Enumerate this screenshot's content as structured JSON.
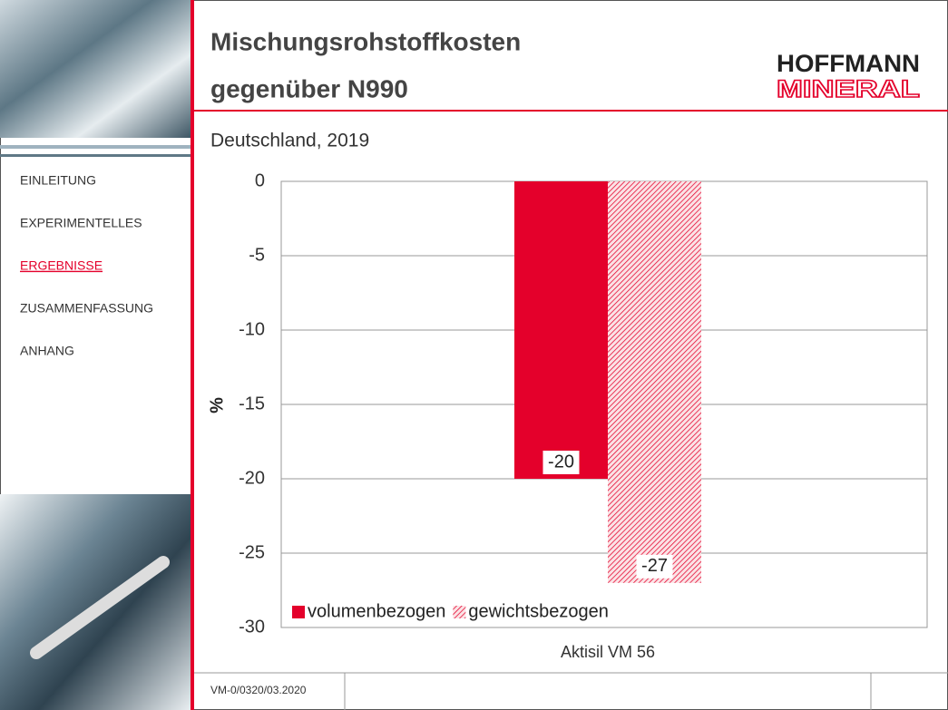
{
  "header": {
    "title": [
      "Mischungsrohstoffkosten",
      "gegenüber N990"
    ],
    "subtitle": "Deutschland, 2019",
    "logo": [
      "HOFFMANN",
      "MINERAL"
    ]
  },
  "nav": {
    "items": [
      "EINLEITUNG",
      "EXPERIMENTELLES",
      "ERGEBNISSE",
      "ZUSAMMENFASSUNG",
      "ANHANG"
    ],
    "active": 2
  },
  "footer": {
    "code": "VM-0/0320/03.2020"
  },
  "chart_data": {
    "type": "bar",
    "y_label": "%",
    "categories": [
      "Aktisil VM 56"
    ],
    "series": [
      {
        "name": "volumenbezogen",
        "color": "#e4002b",
        "values": [
          -20
        ]
      },
      {
        "name": "gewichtsbezogen",
        "color": "#e4002b",
        "hatch": true,
        "values": [
          -27
        ]
      }
    ],
    "ylim": [
      -30,
      0
    ],
    "yticks": [
      0,
      -5,
      -10,
      -15,
      -20,
      -25,
      -30
    ],
    "grid": true,
    "legend": "lower left"
  }
}
